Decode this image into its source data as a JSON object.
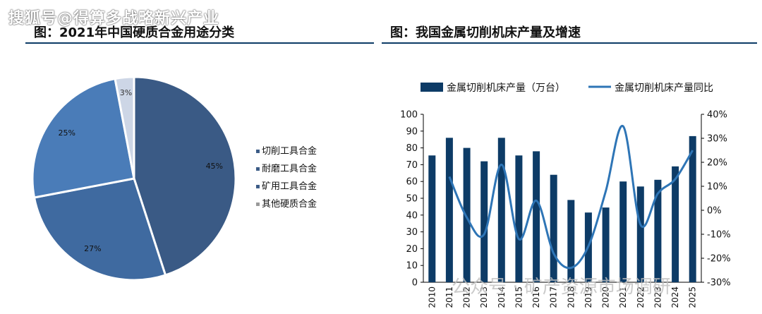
{
  "watermark_top": "搜狐号@得算多战略新兴产业",
  "watermark_bottom": "公众号 · 矿产资源市场调研",
  "chart_data": [
    {
      "type": "pie",
      "title": "图：2021年中国硬质合金用途分类",
      "categories": [
        "切削工具合金",
        "耐磨工具合金",
        "矿用工具合金",
        "其他硬质合金"
      ],
      "values": [
        45,
        27,
        25,
        3
      ],
      "value_labels": [
        "45%",
        "27%",
        "25%",
        "3%"
      ],
      "colors": [
        "#3a5a85",
        "#3f6aa0",
        "#4a7cb8",
        "#cdd6e6"
      ],
      "legend": "right"
    },
    {
      "type": "bar",
      "title": "图：我国金属切削机床产量及增速",
      "categories": [
        "2010",
        "2011",
        "2012",
        "2013",
        "2014",
        "2015",
        "2016",
        "2017",
        "2018",
        "2019",
        "2020",
        "2021",
        "2022",
        "2023",
        "2024",
        "2025"
      ],
      "series": [
        {
          "name": "金属切削机床产量（万台）",
          "type": "bar",
          "axis": "left",
          "color": "#0d3b66",
          "values": [
            75.5,
            86,
            80,
            72,
            86,
            75.5,
            78,
            64,
            49,
            41.5,
            44.5,
            60,
            57,
            61,
            69,
            87
          ]
        },
        {
          "name": "金属切削机床产量同比",
          "type": "line",
          "axis": "right",
          "color": "#2e75b6",
          "values": [
            null,
            14,
            -3,
            -10,
            19,
            -12,
            4,
            -18,
            -24,
            -15,
            8,
            35,
            -6,
            7,
            13,
            25
          ]
        }
      ],
      "ylim_left": [
        0,
        100
      ],
      "yticks_left": [
        "0",
        "10",
        "20",
        "30",
        "40",
        "50",
        "60",
        "70",
        "80",
        "90",
        "100"
      ],
      "ylim_right": [
        -30,
        40
      ],
      "yticks_right": [
        "-30%",
        "-20%",
        "-10%",
        "0%",
        "10%",
        "20%",
        "30%",
        "40%"
      ],
      "legend": "top"
    }
  ]
}
